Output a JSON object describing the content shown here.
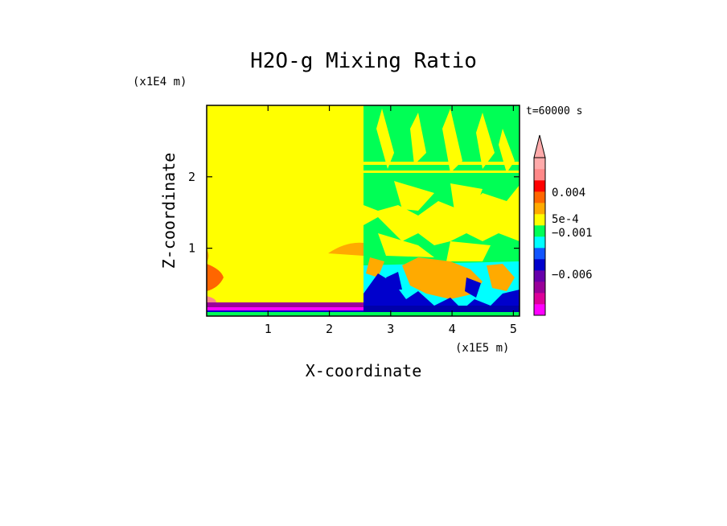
{
  "chart_data": {
    "type": "heatmap",
    "title": "H2O-g Mixing Ratio",
    "xlabel": "X-coordinate",
    "ylabel": "Z-coordinate",
    "x_unit": "(x1E5 m)",
    "y_unit": "(x1E4 m)",
    "time_label": "t=60000 s",
    "xlim": [
      0,
      5.1
    ],
    "ylim": [
      0.05,
      3.0
    ],
    "x_ticks": [
      "1",
      "2",
      "3",
      "4",
      "5"
    ],
    "x_tick_values": [
      1,
      2,
      3,
      4,
      5
    ],
    "y_ticks": [
      "1",
      "2"
    ],
    "y_tick_values": [
      1,
      2
    ],
    "colorbar": {
      "labels": [
        "0.004",
        "5e-4",
        "−0.001",
        "−0.006"
      ],
      "colors": [
        "#ff00ff",
        "#dd0099",
        "#990099",
        "#6600aa",
        "#0000cc",
        "#1155ff",
        "#00ffff",
        "#00ff55",
        "#ffff00",
        "#ffaa00",
        "#ff6600",
        "#ff0000",
        "#ff8888",
        "#ffaaaa"
      ]
    },
    "palette": {
      "background": "#ffff00",
      "green": "#00ff55",
      "cyan": "#00ffff",
      "orange": "#ffaa00",
      "blue": "#0000cc",
      "navy": "#0000aa",
      "purple": "#990099",
      "magenta": "#ff00ff",
      "red": "#ff3300"
    }
  }
}
